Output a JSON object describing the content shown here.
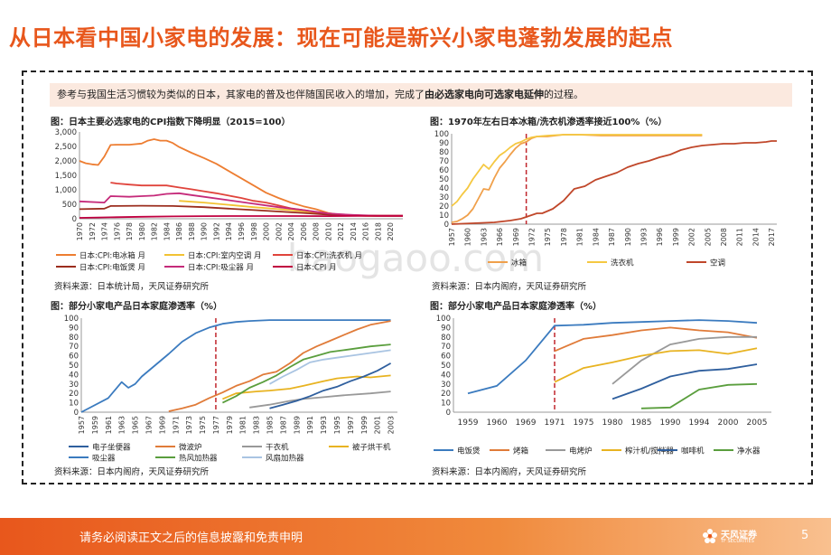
{
  "page": {
    "title": "从日本看中国小家电的发展：现在可能是新兴小家电蓬勃发展的起点",
    "note_plain": "参考与我国生活习惯较为类似的日本，其家电的普及也伴随国民收入的增加，完成了",
    "note_bold": "由必选家电向可选家电延伸",
    "note_end": "的过程。",
    "footer_text": "请务必阅读正文之后的信息披露和免责申明",
    "logo_text": "天风证券",
    "logo_sub": "TF SECURITIES",
    "page_number": "5",
    "watermark": "baogaoo.com",
    "colors": {
      "accent": "#e8571c",
      "dashed": "#c0272d"
    }
  },
  "chart_data": [
    {
      "type": "line",
      "title": "图：日本主要必选家电的CPI指数下降明显（2015=100）",
      "source": "资料来源：日本统计局，天风证券研究所",
      "xlim": [
        1970,
        2022
      ],
      "ylim": [
        0,
        3000
      ],
      "yticks": [
        0,
        500,
        1000,
        1500,
        2000,
        2500,
        3000
      ],
      "ytick_labels": [
        "0",
        "500",
        "1,000",
        "1,500",
        "2,000",
        "2,500",
        "3,000"
      ],
      "xtick_labels": [
        "1970",
        "1972",
        "1974",
        "1976",
        "1978",
        "1980",
        "1982",
        "1984",
        "1986",
        "1988",
        "1990",
        "1992",
        "1994",
        "1996",
        "1998",
        "2000",
        "2002",
        "2004",
        "2006",
        "2008",
        "2010",
        "2012",
        "2014",
        "2016",
        "2018",
        "2020"
      ],
      "legend": [
        "日本:CPI:电冰箱 月",
        "日本:CPI:室内空调 月",
        "日本:CPI:洗衣机 月",
        "日本:CPI:电饭煲 月",
        "日本:CPI:吸尘器 月",
        "日本:CPI 月"
      ],
      "series": [
        {
          "name": "日本:CPI:电冰箱 月",
          "color": "#ed7d31",
          "x": [
            1970,
            1971,
            1972,
            1973,
            1974,
            1975,
            1976,
            1978,
            1980,
            1981,
            1982,
            1983,
            1984,
            1985,
            1986,
            1988,
            1990,
            1992,
            1994,
            1996,
            1998,
            2000,
            2002,
            2004,
            2006,
            2008,
            2010,
            2012,
            2014,
            2016,
            2018,
            2020,
            2022
          ],
          "y": [
            2000,
            1920,
            1880,
            1860,
            2150,
            2550,
            2560,
            2560,
            2600,
            2700,
            2750,
            2700,
            2700,
            2620,
            2480,
            2280,
            2100,
            1900,
            1650,
            1400,
            1150,
            900,
            720,
            560,
            430,
            330,
            200,
            130,
            110,
            100,
            95,
            90,
            90
          ]
        },
        {
          "name": "日本:CPI:室内空调 月",
          "color": "#f2c233",
          "x": [
            1986,
            1990,
            1994,
            1998,
            2002,
            2006,
            2010,
            2014,
            2018,
            2022
          ],
          "y": [
            620,
            560,
            480,
            400,
            330,
            260,
            160,
            120,
            100,
            100
          ]
        },
        {
          "name": "日本:CPI:洗衣机 月",
          "color": "#e0443c",
          "x": [
            1975,
            1976,
            1978,
            1980,
            1982,
            1984,
            1986,
            1988,
            1990,
            1992,
            1994,
            1996,
            1998,
            2000,
            2002,
            2004,
            2006,
            2008,
            2010,
            2012,
            2014,
            2016,
            2018,
            2020,
            2022
          ],
          "y": [
            1250,
            1220,
            1180,
            1150,
            1150,
            1150,
            1080,
            1020,
            950,
            880,
            800,
            720,
            620,
            560,
            460,
            360,
            300,
            230,
            160,
            130,
            120,
            110,
            105,
            100,
            100
          ]
        },
        {
          "name": "日本:CPI:电饭煲 月",
          "color": "#9b2d1e",
          "x": [
            1970,
            1974,
            1975,
            1980,
            1985,
            1990,
            1994,
            1998,
            2002,
            2006,
            2010,
            2014,
            2018,
            2022
          ],
          "y": [
            330,
            350,
            440,
            450,
            440,
            400,
            350,
            300,
            250,
            200,
            140,
            110,
            100,
            100
          ]
        },
        {
          "name": "日本:CPI:吸尘器 月",
          "color": "#c52a7a",
          "x": [
            1970,
            1974,
            1975,
            1978,
            1980,
            1982,
            1984,
            1986,
            1988,
            1990,
            1994,
            1998,
            2002,
            2006,
            2010,
            2014,
            2018,
            2022
          ],
          "y": [
            600,
            560,
            780,
            760,
            780,
            800,
            860,
            880,
            820,
            760,
            640,
            520,
            400,
            300,
            180,
            130,
            100,
            100
          ]
        },
        {
          "name": "日本:CPI 月",
          "color": "#c00040",
          "x": [
            1970,
            1975,
            1980,
            1985,
            1990,
            1995,
            2000,
            2005,
            2010,
            2015,
            2020,
            2022
          ],
          "y": [
            30,
            50,
            70,
            80,
            90,
            95,
            95,
            93,
            92,
            100,
            102,
            103
          ]
        }
      ]
    },
    {
      "type": "line",
      "title": "图：1970年左右日本冰箱/洗衣机渗透率接近100%（%）",
      "source": "资料来源：日本内阁府，天风证券研究所",
      "xlim": [
        1957,
        2018
      ],
      "ylim": [
        0,
        100
      ],
      "yticks": [
        0,
        10,
        20,
        30,
        40,
        50,
        60,
        70,
        80,
        90,
        100
      ],
      "xtick_labels": [
        "1957",
        "1960",
        "1963",
        "1966",
        "1969",
        "1972",
        "1975",
        "1978",
        "1981",
        "1984",
        "1987",
        "1990",
        "1993",
        "1996",
        "1999",
        "2002",
        "2005",
        "2008",
        "2011",
        "2014",
        "2017"
      ],
      "marker_year": 1971,
      "legend": [
        "冰箱",
        "洗衣机",
        "空调"
      ],
      "series": [
        {
          "name": "冰箱",
          "color": "#f0a04b",
          "x": [
            1957,
            1958,
            1959,
            1960,
            1961,
            1962,
            1963,
            1964,
            1965,
            1966,
            1967,
            1968,
            1969,
            1970,
            1971,
            1972,
            1973,
            1975,
            1978,
            1981,
            1985,
            1990,
            1995,
            2000,
            2004
          ],
          "y": [
            2,
            3,
            6,
            10,
            17,
            28,
            39,
            38,
            51,
            62,
            69,
            77,
            84,
            89,
            91,
            95,
            97,
            97,
            99,
            99,
            98,
            98,
            98,
            98,
            98
          ]
        },
        {
          "name": "洗衣机",
          "color": "#f5c842",
          "x": [
            1957,
            1958,
            1959,
            1960,
            1961,
            1962,
            1963,
            1964,
            1965,
            1966,
            1967,
            1968,
            1969,
            1970,
            1971,
            1972,
            1973,
            1975,
            1978,
            1985,
            1990,
            1995,
            2000,
            2004
          ],
          "y": [
            20,
            25,
            33,
            40,
            50,
            58,
            66,
            61,
            69,
            76,
            80,
            85,
            89,
            91,
            94,
            96,
            97,
            98,
            99,
            99,
            99,
            99,
            99,
            99
          ]
        },
        {
          "name": "空调",
          "color": "#c0472a",
          "x": [
            1957,
            1961,
            1965,
            1968,
            1970,
            1971,
            1972,
            1973,
            1974,
            1976,
            1978,
            1980,
            1982,
            1984,
            1986,
            1988,
            1990,
            1992,
            1994,
            1996,
            1998,
            2000,
            2002,
            2004,
            2006,
            2008,
            2010,
            2012,
            2014,
            2016,
            2017,
            2018
          ],
          "y": [
            0,
            1,
            2,
            4,
            6,
            8,
            10,
            12,
            12,
            17,
            26,
            39,
            42,
            49,
            53,
            57,
            63,
            67,
            70,
            74,
            77,
            82,
            85,
            87,
            88,
            89,
            89,
            90,
            90,
            91,
            92,
            92
          ]
        }
      ]
    },
    {
      "type": "line",
      "title": "图：部分小家电产品日本家庭渗透率（%）",
      "source": "资料来源：日本内阁府，天风证券研究所",
      "xlim": [
        1957,
        2004
      ],
      "ylim": [
        0,
        100
      ],
      "yticks": [
        0,
        10,
        20,
        30,
        40,
        50,
        60,
        70,
        80,
        90,
        100
      ],
      "xtick_labels": [
        "1957",
        "1959",
        "1961",
        "1963",
        "1965",
        "1967",
        "1969",
        "1971",
        "1973",
        "1975",
        "1977",
        "1979",
        "1981",
        "1983",
        "1985",
        "1987",
        "1989",
        "1991",
        "1993",
        "1995",
        "1997",
        "1999",
        "2001",
        "2003"
      ],
      "marker_year": 1977,
      "legend": [
        "电子坐便器",
        "微波炉",
        "干衣机",
        "被子烘干机",
        "吸尘器",
        "热风加热器",
        "风扇加热器"
      ],
      "series": [
        {
          "name": "吸尘器",
          "color": "#3b7bbf",
          "x": [
            1957,
            1961,
            1963,
            1964,
            1965,
            1966,
            1968,
            1970,
            1972,
            1974,
            1976,
            1978,
            1980,
            1982,
            1985,
            1990,
            2003
          ],
          "y": [
            0,
            15,
            32,
            26,
            30,
            38,
            50,
            62,
            75,
            84,
            90,
            94,
            96,
            97,
            98,
            98,
            98
          ]
        },
        {
          "name": "微波炉",
          "color": "#e07b39",
          "x": [
            1970,
            1972,
            1974,
            1976,
            1978,
            1980,
            1982,
            1984,
            1986,
            1988,
            1990,
            1992,
            1994,
            1996,
            1998,
            2000,
            2003
          ],
          "y": [
            1,
            4,
            8,
            15,
            21,
            28,
            33,
            40,
            43,
            52,
            63,
            70,
            76,
            82,
            88,
            93,
            97
          ]
        },
        {
          "name": "干衣机",
          "color": "#999999",
          "x": [
            1982,
            1985,
            1988,
            1990,
            1993,
            1996,
            2000,
            2003
          ],
          "y": [
            5,
            8,
            12,
            14,
            16,
            18,
            20,
            22
          ]
        },
        {
          "name": "被子烘干机",
          "color": "#e8b321",
          "x": [
            1978,
            1980,
            1983,
            1985,
            1988,
            1990,
            1993,
            1995,
            1998,
            2000,
            2003
          ],
          "y": [
            14,
            20,
            22,
            23,
            25,
            28,
            33,
            36,
            38,
            37,
            39
          ]
        },
        {
          "name": "电子坐便器",
          "color": "#2f5f9e",
          "x": [
            1985,
            1987,
            1989,
            1991,
            1993,
            1995,
            1997,
            1999,
            2001,
            2003
          ],
          "y": [
            4,
            8,
            12,
            17,
            23,
            27,
            33,
            38,
            44,
            52
          ]
        },
        {
          "name": "热风加热器",
          "color": "#5a9e3d",
          "x": [
            1978,
            1980,
            1982,
            1984,
            1986,
            1988,
            1990,
            1992,
            1994,
            1996,
            1998,
            2000,
            2003
          ],
          "y": [
            10,
            17,
            26,
            32,
            39,
            48,
            56,
            60,
            64,
            66,
            68,
            70,
            72
          ]
        },
        {
          "name": "风扇加热器",
          "color": "#a9c4e2",
          "x": [
            1985,
            1987,
            1989,
            1991,
            1993,
            1995,
            1997,
            2000,
            2003
          ],
          "y": [
            30,
            38,
            45,
            53,
            56,
            58,
            60,
            63,
            66
          ]
        }
      ]
    },
    {
      "type": "line",
      "title": "图：部分小家电产品日本家庭渗透率（%）",
      "source": "资料来源：日本内阁府，天风证券研究所",
      "categories": [
        "1959",
        "1960",
        "1969",
        "1971",
        "1975",
        "1980",
        "1985",
        "1990",
        "1994",
        "2000",
        "2005"
      ],
      "ylim": [
        0,
        100
      ],
      "yticks": [
        0,
        10,
        20,
        30,
        40,
        50,
        60,
        70,
        80,
        90,
        100
      ],
      "marker_category": "1971",
      "legend": [
        "电饭煲",
        "烤箱",
        "电烤炉",
        "榨汁机/搅拌器",
        "咖啡机",
        "净水器"
      ],
      "series": [
        {
          "name": "电饭煲",
          "color": "#3b7bbf",
          "values": [
            20,
            28,
            55,
            92,
            93,
            95,
            96,
            97,
            98,
            97,
            95
          ]
        },
        {
          "name": "烤箱",
          "color": "#e07b39",
          "values": [
            null,
            null,
            null,
            65,
            78,
            82,
            87,
            90,
            87,
            85,
            79
          ]
        },
        {
          "name": "电烤炉",
          "color": "#999999",
          "values": [
            null,
            null,
            null,
            null,
            null,
            30,
            55,
            72,
            78,
            80,
            80
          ]
        },
        {
          "name": "榨汁机/搅拌器",
          "color": "#e8b321",
          "values": [
            null,
            null,
            null,
            32,
            47,
            53,
            60,
            65,
            66,
            62,
            68
          ]
        },
        {
          "name": "咖啡机",
          "color": "#2f5f9e",
          "values": [
            null,
            null,
            null,
            null,
            null,
            14,
            25,
            38,
            44,
            46,
            51
          ]
        },
        {
          "name": "净水器",
          "color": "#5a9e3d",
          "values": [
            null,
            null,
            null,
            null,
            null,
            null,
            4,
            5,
            24,
            29,
            30
          ]
        }
      ]
    }
  ]
}
